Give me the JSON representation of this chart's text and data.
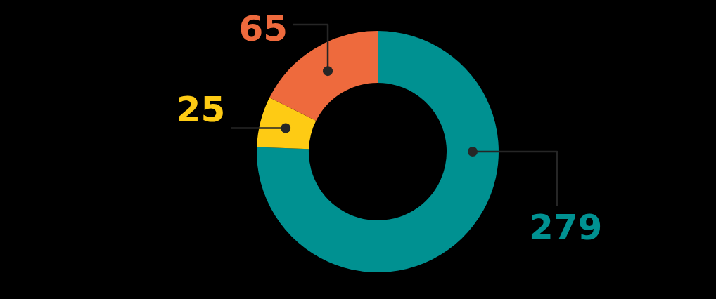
{
  "chart_data": {
    "type": "donut",
    "categories": [
      null,
      null,
      null
    ],
    "values": [
      279,
      25,
      65
    ],
    "colors": [
      "#009191",
      "#fecb14",
      "#ee6a3d"
    ],
    "data_labels": true,
    "legend": false
  }
}
